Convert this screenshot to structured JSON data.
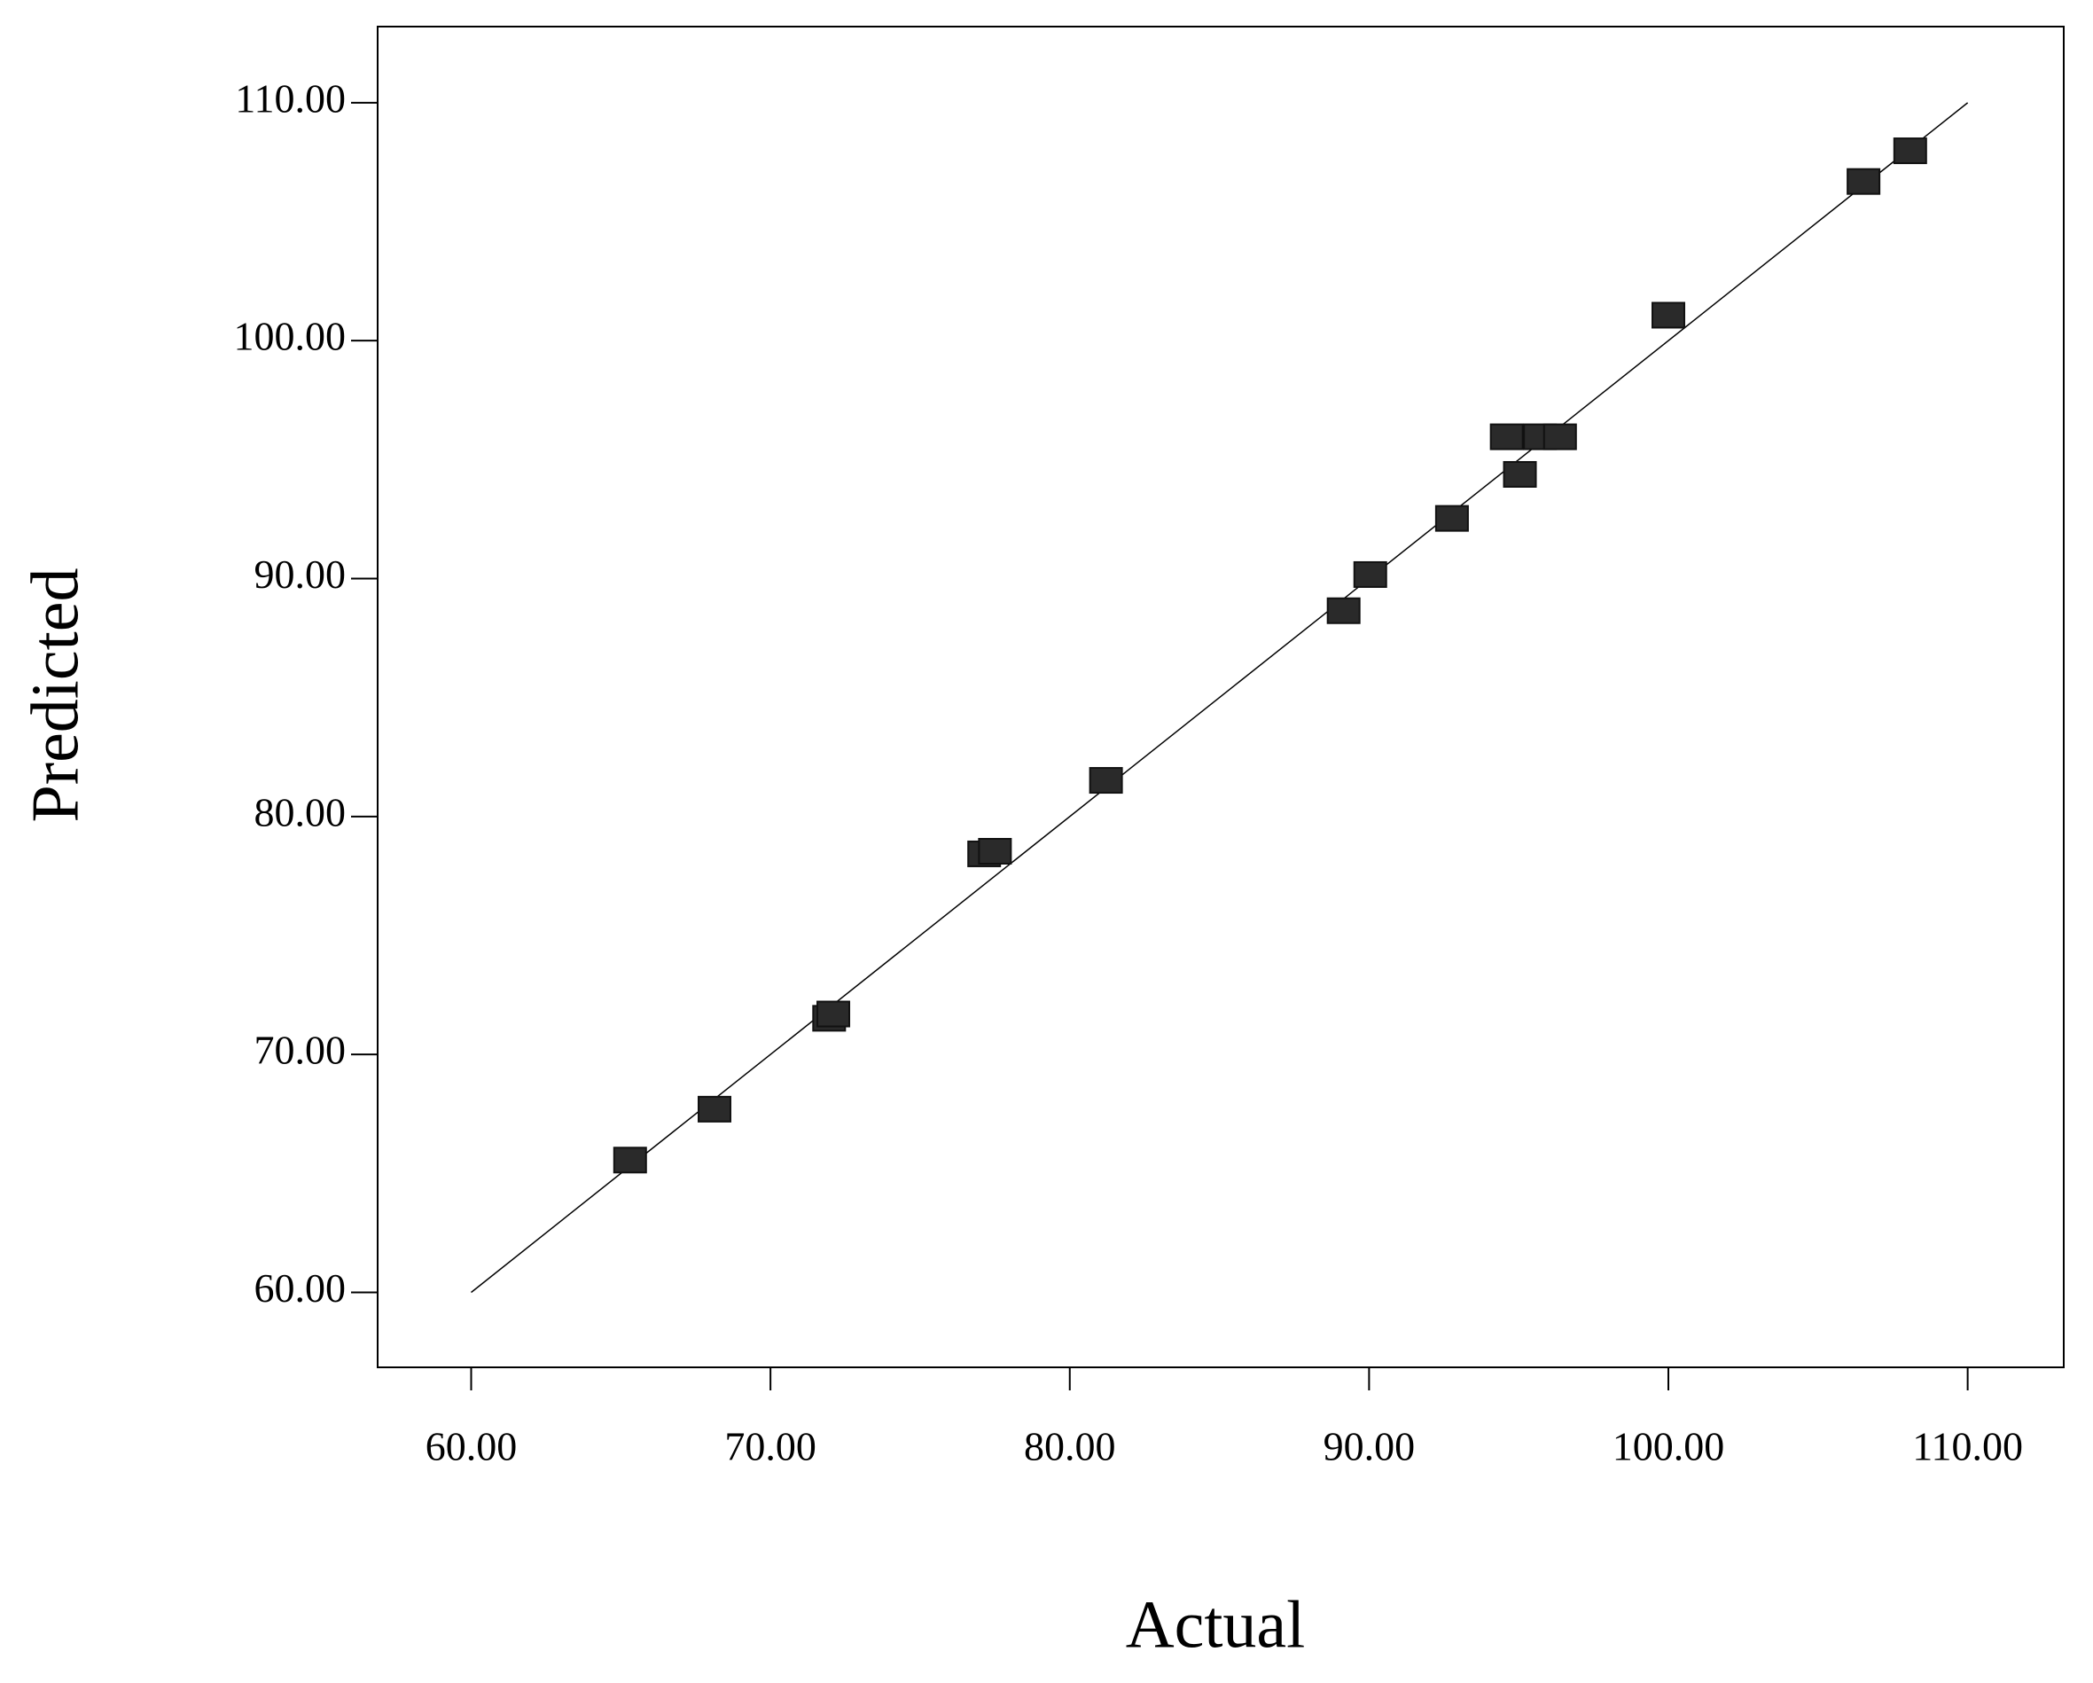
{
  "chart_data": {
    "type": "scatter",
    "x_label": "Actual",
    "y_label": "Predicted",
    "xlim": [
      56.875,
      113.21
    ],
    "ylim": [
      56.85,
      113.2
    ],
    "xticks": [
      {
        "value": 60,
        "label": "60.00"
      },
      {
        "value": 70,
        "label": "70.00"
      },
      {
        "value": 80,
        "label": "80.00"
      },
      {
        "value": 90,
        "label": "90.00"
      },
      {
        "value": 100,
        "label": "100.00"
      },
      {
        "value": 110,
        "label": "110.00"
      }
    ],
    "yticks": [
      {
        "value": 60,
        "label": "60.00"
      },
      {
        "value": 70,
        "label": "70.00"
      },
      {
        "value": 80,
        "label": "80.00"
      },
      {
        "value": 90,
        "label": "90.00"
      },
      {
        "value": 100,
        "label": "100.00"
      },
      {
        "value": 110,
        "label": "110.00"
      }
    ],
    "color": "#2a2a2a",
    "x": [
      65.31,
      68.13,
      71.96,
      72.1,
      77.14,
      77.5,
      81.21,
      89.15,
      90.04,
      92.77,
      94.6,
      95.04,
      95.71,
      96.38,
      100.0,
      106.52,
      108.08
    ],
    "values": [
      65.56,
      67.7,
      71.52,
      71.7,
      78.43,
      78.54,
      81.52,
      88.65,
      90.17,
      92.53,
      95.96,
      94.38,
      95.96,
      95.96,
      101.07,
      106.69,
      107.98
    ]
  }
}
